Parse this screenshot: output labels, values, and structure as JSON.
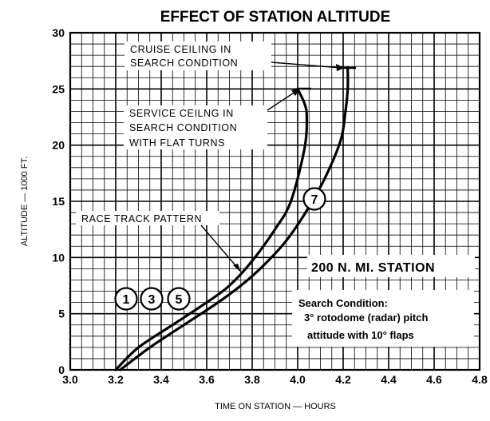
{
  "chart_data": {
    "type": "line",
    "title": "EFFECT OF STATION ALTITUDE",
    "xlabel": "TIME ON STATION — HOURS",
    "ylabel": "ALTITUDE — 1000 FT.",
    "xlim": [
      3.0,
      4.8
    ],
    "ylim": [
      0,
      30
    ],
    "x_ticks": [
      "3.0",
      "3.2",
      "3.4",
      "3.6",
      "3.8",
      "4.0",
      "4.2",
      "4.4",
      "4.6",
      "4.8"
    ],
    "y_ticks": [
      "0",
      "5",
      "10",
      "15",
      "20",
      "25",
      "30"
    ],
    "grid": true,
    "series": [
      {
        "name": "1 3 5",
        "points": [
          [
            3.2,
            0
          ],
          [
            3.3,
            2
          ],
          [
            3.45,
            4
          ],
          [
            3.6,
            6
          ],
          [
            3.7,
            7.5
          ],
          [
            3.8,
            9.7
          ],
          [
            3.9,
            12.5
          ],
          [
            3.97,
            15
          ],
          [
            4.03,
            19.7
          ],
          [
            4.04,
            22.5
          ],
          [
            4.03,
            23.7
          ],
          [
            4.0,
            25
          ]
        ]
      },
      {
        "name": "7",
        "points": [
          [
            3.22,
            0
          ],
          [
            3.35,
            2
          ],
          [
            3.5,
            4
          ],
          [
            3.65,
            6
          ],
          [
            3.75,
            7.5
          ],
          [
            3.85,
            9.3
          ],
          [
            3.95,
            11.5
          ],
          [
            4.05,
            14.5
          ],
          [
            4.13,
            17.5
          ],
          [
            4.19,
            20.5
          ],
          [
            4.21,
            23
          ],
          [
            4.22,
            25
          ],
          [
            4.22,
            26.9
          ]
        ]
      }
    ],
    "annotations": {
      "cruise": [
        "CRUISE CEILING IN",
        "SEARCH CONDITION"
      ],
      "service": [
        "SERVICE CEILNG IN",
        "SEARCH CONDITION",
        "WITH FLAT TURNS"
      ],
      "race": "RACE TRACK PATTERN",
      "station": "200 N. MI. STATION",
      "search": [
        "Search Condition:",
        "3° rotodome (radar) pitch",
        "attitude with 10° flaps"
      ],
      "curve_labels": [
        "1",
        "3",
        "5",
        "7"
      ]
    }
  }
}
